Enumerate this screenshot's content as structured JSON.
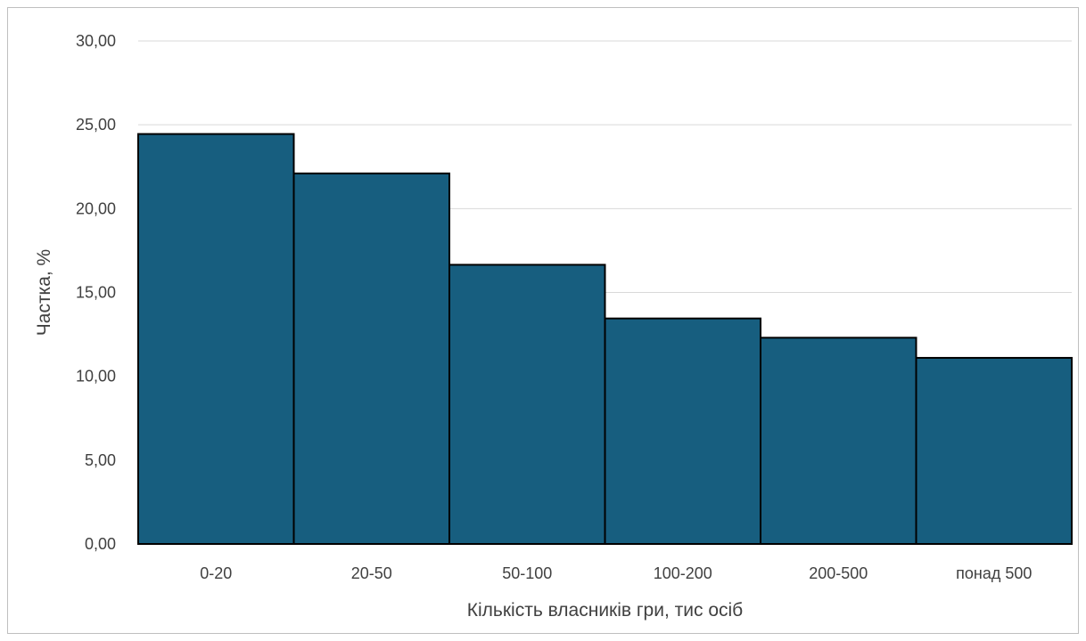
{
  "chart_data": {
    "type": "bar",
    "categories": [
      "0-20",
      "20-50",
      "50-100",
      "100-200",
      "200-500",
      "понад 500"
    ],
    "values": [
      24.45,
      22.1,
      16.65,
      13.45,
      12.3,
      11.1
    ],
    "xlabel": "Кількість власників гри, тис осіб",
    "ylabel": "Частка, %",
    "ylim": [
      0,
      30
    ],
    "yticks": [
      "0,00",
      "5,00",
      "10,00",
      "15,00",
      "20,00",
      "25,00",
      "30,00"
    ],
    "ytick_values": [
      0,
      5,
      10,
      15,
      20,
      25,
      30
    ],
    "grid": true,
    "legend": "none",
    "bar_color": "#175e7f",
    "bar_edge_color": "#000000"
  }
}
